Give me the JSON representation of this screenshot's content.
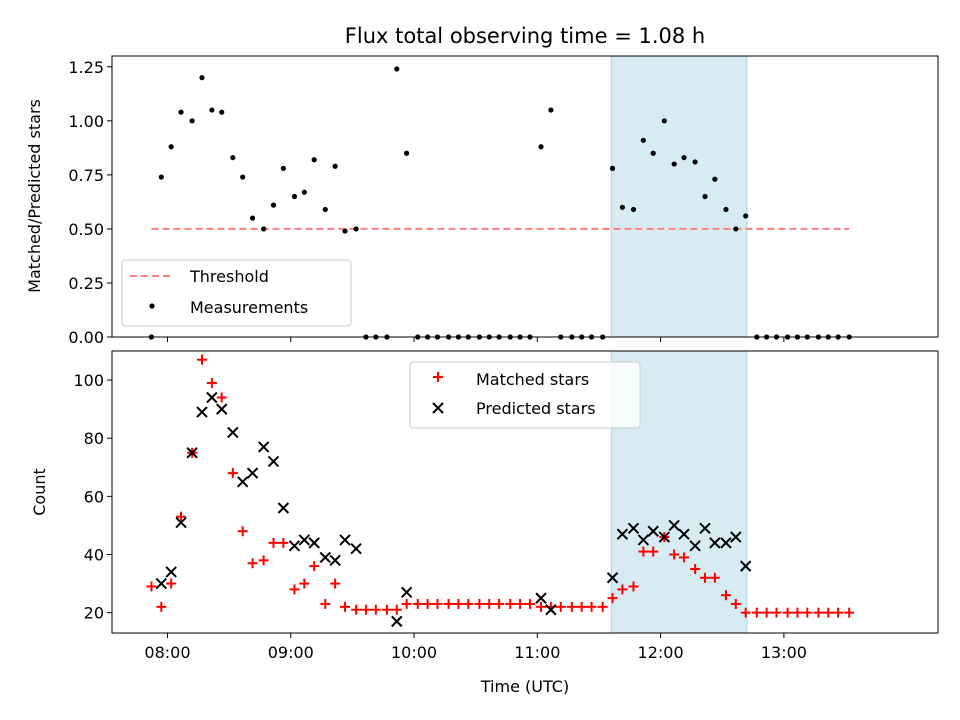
{
  "colors": {
    "threshold": "#ff8080",
    "measurement": "#000000",
    "matched": "#ff0000",
    "predicted": "#000000",
    "highlight": "#add8e6"
  },
  "chart_data": [
    {
      "type": "scatter",
      "title": "Flux total observing time = 1.08 h",
      "xlabel": "",
      "ylabel": "Matched/Predicted stars",
      "xlim": [
        7.55,
        14.25
      ],
      "ylim": [
        0,
        1.3
      ],
      "yticks": [
        0,
        0.25,
        0.5,
        0.75,
        1.0,
        1.25
      ],
      "ytick_labels": [
        "0.00",
        "0.25",
        "0.50",
        "0.75",
        "1.00",
        "1.25"
      ],
      "xticks": [
        8,
        9,
        10,
        11,
        12,
        13
      ],
      "highlight_span": [
        11.6,
        12.7
      ],
      "threshold": {
        "value": 0.5,
        "x_range": [
          7.87,
          13.53
        ]
      },
      "legend": {
        "placement": "lower-left",
        "entries": [
          "Threshold",
          "Measurements"
        ]
      },
      "series": [
        {
          "name": "Measurements",
          "marker": "dot",
          "x": [
            7.87,
            7.95,
            8.03,
            8.11,
            8.2,
            8.28,
            8.36,
            8.44,
            8.53,
            8.61,
            8.69,
            8.78,
            8.86,
            8.94,
            9.03,
            9.11,
            9.19,
            9.28,
            9.36,
            9.44,
            9.53,
            9.61,
            9.69,
            9.78,
            9.86,
            9.94,
            10.03,
            10.11,
            10.19,
            10.28,
            10.36,
            10.44,
            10.53,
            10.61,
            10.69,
            10.78,
            10.86,
            10.94,
            11.03,
            11.11,
            11.19,
            11.28,
            11.36,
            11.44,
            11.53,
            11.61,
            11.69,
            11.78,
            11.86,
            11.94,
            12.03,
            12.11,
            12.19,
            12.28,
            12.36,
            12.44,
            12.53,
            12.61,
            12.69,
            12.78,
            12.86,
            12.94,
            13.03,
            13.11,
            13.19,
            13.28,
            13.36,
            13.44,
            13.53
          ],
          "y": [
            0.0,
            0.74,
            0.88,
            1.04,
            1.0,
            1.2,
            1.05,
            1.04,
            0.83,
            0.74,
            0.55,
            0.5,
            0.61,
            0.78,
            0.65,
            0.67,
            0.82,
            0.59,
            0.79,
            0.49,
            0.5,
            0.0,
            0.0,
            0.0,
            1.24,
            0.85,
            0.0,
            0.0,
            0.0,
            0.0,
            0.0,
            0.0,
            0.0,
            0.0,
            0.0,
            0.0,
            0.0,
            0.0,
            0.88,
            1.05,
            0.0,
            0.0,
            0.0,
            0.0,
            0.0,
            0.78,
            0.6,
            0.59,
            0.91,
            0.85,
            1.0,
            0.8,
            0.83,
            0.81,
            0.65,
            0.73,
            0.59,
            0.5,
            0.56,
            0.0,
            0.0,
            0.0,
            0.0,
            0.0,
            0.0,
            0.0,
            0.0,
            0.0,
            0.0
          ]
        }
      ]
    },
    {
      "type": "scatter",
      "title": "",
      "xlabel": "Time (UTC)",
      "ylabel": "Count",
      "xlim": [
        7.55,
        14.25
      ],
      "ylim": [
        13,
        110
      ],
      "yticks": [
        20,
        40,
        60,
        80,
        100
      ],
      "ytick_labels": [
        "20",
        "40",
        "60",
        "80",
        "100"
      ],
      "xticks": [
        8,
        9,
        10,
        11,
        12,
        13
      ],
      "xtick_labels": [
        "08:00",
        "09:00",
        "10:00",
        "11:00",
        "12:00",
        "13:00"
      ],
      "highlight_span": [
        11.6,
        12.7
      ],
      "legend": {
        "placement": "upper-center",
        "entries": [
          "Matched stars",
          "Predicted stars"
        ]
      },
      "series": [
        {
          "name": "Matched stars",
          "marker": "plus",
          "x": [
            7.87,
            7.95,
            8.03,
            8.11,
            8.2,
            8.28,
            8.36,
            8.44,
            8.53,
            8.61,
            8.69,
            8.78,
            8.86,
            8.94,
            9.03,
            9.11,
            9.19,
            9.28,
            9.36,
            9.44,
            9.53,
            9.61,
            9.69,
            9.78,
            9.86,
            9.94,
            10.03,
            10.11,
            10.19,
            10.28,
            10.36,
            10.44,
            10.53,
            10.61,
            10.69,
            10.78,
            10.86,
            10.94,
            11.03,
            11.11,
            11.19,
            11.28,
            11.36,
            11.44,
            11.53,
            11.61,
            11.69,
            11.78,
            11.86,
            11.94,
            12.03,
            12.11,
            12.19,
            12.28,
            12.36,
            12.44,
            12.53,
            12.61,
            12.69,
            12.78,
            12.86,
            12.94,
            13.03,
            13.11,
            13.19,
            13.28,
            13.36,
            13.44,
            13.53
          ],
          "y": [
            29,
            22,
            30,
            53,
            75,
            107,
            99,
            94,
            68,
            48,
            37,
            38,
            44,
            44,
            28,
            30,
            36,
            23,
            30,
            22,
            21,
            21,
            21,
            21,
            21,
            23,
            23,
            23,
            23,
            23,
            23,
            23,
            23,
            23,
            23,
            23,
            23,
            23,
            22,
            22,
            22,
            22,
            22,
            22,
            22,
            25,
            28,
            29,
            41,
            41,
            46,
            40,
            39,
            35,
            32,
            32,
            26,
            23,
            20,
            20,
            20,
            20,
            20,
            20,
            20,
            20,
            20,
            20,
            20
          ]
        },
        {
          "name": "Predicted stars",
          "marker": "x",
          "x": [
            7.95,
            8.03,
            8.11,
            8.2,
            8.28,
            8.36,
            8.44,
            8.53,
            8.61,
            8.69,
            8.78,
            8.86,
            8.94,
            9.03,
            9.11,
            9.19,
            9.28,
            9.36,
            9.44,
            9.53,
            9.86,
            9.94,
            11.03,
            11.11,
            11.61,
            11.69,
            11.78,
            11.86,
            11.94,
            12.03,
            12.11,
            12.19,
            12.28,
            12.36,
            12.44,
            12.53,
            12.61,
            12.69
          ],
          "y": [
            30,
            34,
            51,
            75,
            89,
            94,
            90,
            82,
            65,
            68,
            77,
            72,
            56,
            43,
            45,
            44,
            39,
            38,
            45,
            42,
            17,
            27,
            25,
            21,
            32,
            47,
            49,
            45,
            48,
            46,
            50,
            47,
            43,
            49,
            44,
            44,
            46,
            36
          ]
        }
      ]
    }
  ]
}
